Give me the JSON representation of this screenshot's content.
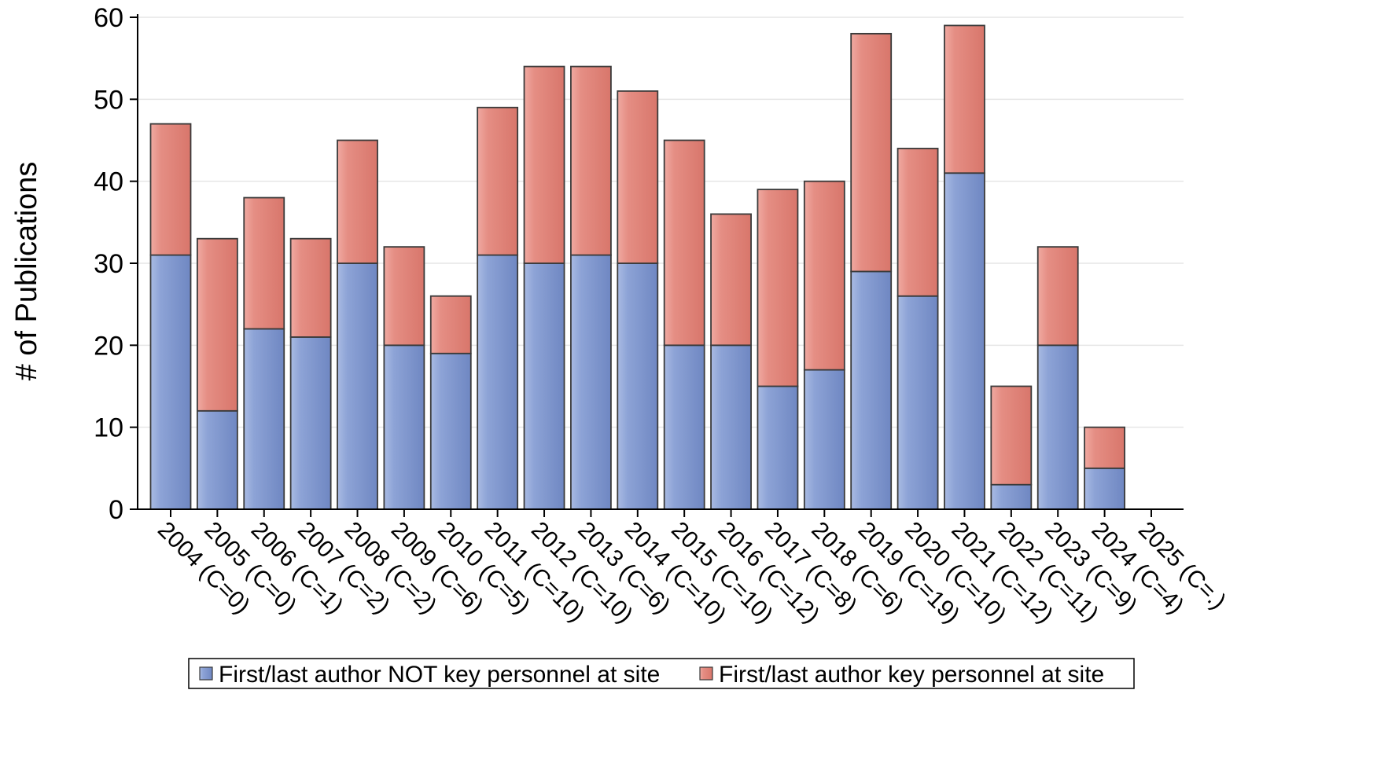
{
  "chart_data": {
    "type": "bar",
    "stacked": true,
    "categories": [
      "2004 (C=0)",
      "2005 (C=0)",
      "2006 (C=1)",
      "2007 (C=2)",
      "2008 (C=2)",
      "2009 (C=6)",
      "2010 (C=5)",
      "2011 (C=10)",
      "2012 (C=10)",
      "2013 (C=6)",
      "2014 (C=10)",
      "2015 (C=10)",
      "2016 (C=12)",
      "2017 (C=8)",
      "2018 (C=6)",
      "2019 (C=19)",
      "2020 (C=10)",
      "2021 (C=12)",
      "2022 (C=11)",
      "2023 (C=9)",
      "2024 (C=4)",
      "2025 (C=.)"
    ],
    "series": [
      {
        "name": "First/last author NOT key personnel at site",
        "color": "#7f96cc",
        "values": [
          31,
          12,
          22,
          21,
          30,
          20,
          19,
          31,
          30,
          31,
          30,
          20,
          20,
          15,
          17,
          29,
          26,
          41,
          3,
          20,
          5,
          0
        ]
      },
      {
        "name": "First/last author key personnel at site",
        "color": "#e0867c",
        "values": [
          16,
          21,
          16,
          12,
          15,
          12,
          7,
          18,
          24,
          23,
          21,
          25,
          16,
          24,
          23,
          29,
          18,
          18,
          12,
          12,
          5,
          0
        ]
      }
    ],
    "title": "",
    "xlabel": "",
    "ylabel": "# of Publications",
    "ylim": [
      0,
      60
    ],
    "yticks": [
      0,
      10,
      20,
      30,
      40,
      50,
      60
    ],
    "grid": true,
    "legend_position": "bottom"
  }
}
